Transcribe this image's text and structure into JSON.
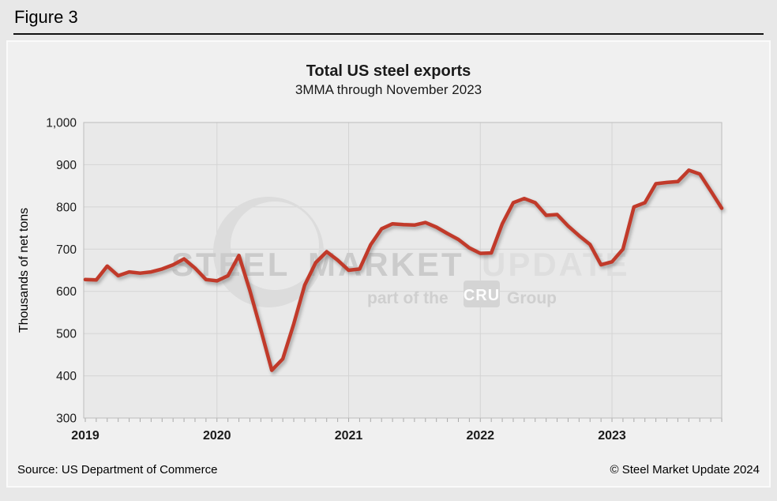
{
  "figure_label": "Figure 3",
  "chart_data": {
    "type": "line",
    "title": "Total US steel exports",
    "subtitle": "3MMA through November 2023",
    "ylabel": "Thousands of net tons",
    "ylim": [
      300,
      1000
    ],
    "ytick_step": 100,
    "ytick_labels": [
      "300",
      "400",
      "500",
      "600",
      "700",
      "800",
      "900",
      "1,000"
    ],
    "xtick_labels": [
      "2019",
      "2020",
      "2021",
      "2022",
      "2023"
    ],
    "x_unit": "month",
    "x_range": [
      "2019-01",
      "2023-11"
    ],
    "grid": true,
    "legend": "none",
    "line_color": "#c13a2a",
    "series": [
      {
        "name": "Total US steel exports (3MMA, thousands of net tons)",
        "values": [
          628,
          627,
          660,
          637,
          646,
          643,
          646,
          653,
          663,
          677,
          655,
          628,
          625,
          637,
          685,
          602,
          509,
          413,
          440,
          523,
          615,
          668,
          694,
          674,
          650,
          653,
          710,
          748,
          760,
          758,
          757,
          763,
          752,
          737,
          723,
          703,
          690,
          691,
          760,
          810,
          820,
          810,
          780,
          782,
          755,
          732,
          711,
          663,
          670,
          700,
          800,
          810,
          855,
          858,
          860,
          887,
          878,
          838,
          797
        ]
      }
    ]
  },
  "watermark": {
    "steel": "STEEL",
    "market": "MARKET",
    "update": "UPDATE",
    "tagline_prefix": "part of the",
    "cru": "CRU",
    "tagline_suffix": "Group"
  },
  "footer": {
    "source": "Source: US Department of Commerce",
    "copyright": "© Steel Market Update 2024"
  }
}
